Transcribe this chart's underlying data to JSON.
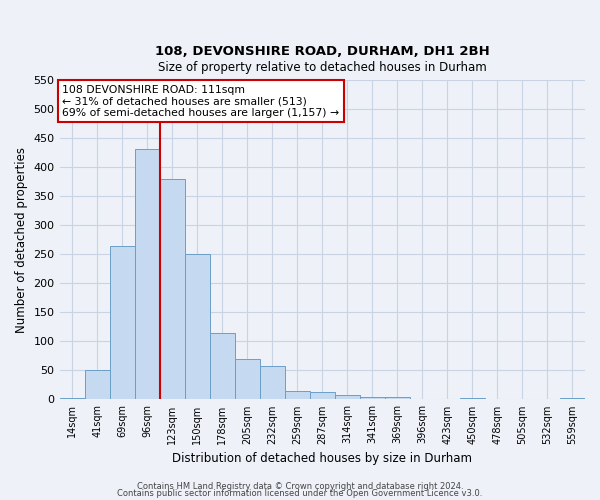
{
  "title": "108, DEVONSHIRE ROAD, DURHAM, DH1 2BH",
  "subtitle": "Size of property relative to detached houses in Durham",
  "xlabel": "Distribution of detached houses by size in Durham",
  "ylabel": "Number of detached properties",
  "bar_color": "#c5d9f0",
  "bar_edge_color": "#6a9fc8",
  "bin_labels": [
    "14sqm",
    "41sqm",
    "69sqm",
    "96sqm",
    "123sqm",
    "150sqm",
    "178sqm",
    "205sqm",
    "232sqm",
    "259sqm",
    "287sqm",
    "314sqm",
    "341sqm",
    "369sqm",
    "396sqm",
    "423sqm",
    "450sqm",
    "478sqm",
    "505sqm",
    "532sqm",
    "559sqm"
  ],
  "bar_values": [
    3,
    50,
    265,
    432,
    380,
    250,
    115,
    70,
    58,
    15,
    13,
    7,
    5,
    4,
    0,
    0,
    3,
    0,
    0,
    0,
    2
  ],
  "ylim": [
    0,
    550
  ],
  "yticks": [
    0,
    50,
    100,
    150,
    200,
    250,
    300,
    350,
    400,
    450,
    500,
    550
  ],
  "vline_x": 4.0,
  "vline_color": "#cc0000",
  "annotation_lines": [
    "108 DEVONSHIRE ROAD: 111sqm",
    "← 31% of detached houses are smaller (513)",
    "69% of semi-detached houses are larger (1,157) →"
  ],
  "annotation_box_color": "#ffffff",
  "annotation_box_edge_color": "#cc0000",
  "footer_line1": "Contains HM Land Registry data © Crown copyright and database right 2024.",
  "footer_line2": "Contains public sector information licensed under the Open Government Licence v3.0.",
  "background_color": "#eef2f8",
  "grid_color": "#c8d4e4"
}
